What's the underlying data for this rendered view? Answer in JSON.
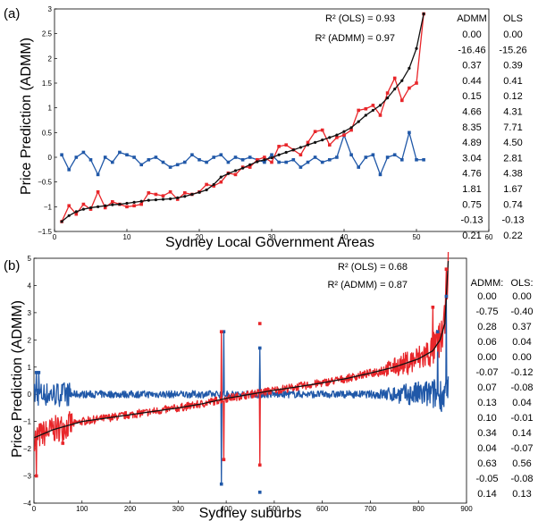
{
  "colors": {
    "ols": "#e8262a",
    "admm": "#2058a8",
    "actual": "#111111"
  },
  "chart_data": [
    {
      "type": "line",
      "panel_label": "(a)",
      "xlabel": "Sydney Local Government Areas",
      "ylabel": "Price Prediction (ADMM)",
      "xlim": [
        0,
        60
      ],
      "ylim": [
        -1.5,
        3
      ],
      "x_ticks": [
        0,
        10,
        20,
        30,
        40,
        50,
        60
      ],
      "y_ticks": [
        -1.5,
        -1,
        -0.5,
        0,
        0.5,
        1,
        1.5,
        2,
        2.5,
        3
      ],
      "x_tick_labels": [
        "0",
        "10",
        "20",
        "30",
        "40",
        "50",
        "60"
      ],
      "y_tick_labels": [
        "−1.5",
        "−1",
        "−0.5",
        "0",
        "0.5",
        "1",
        "1.5",
        "2",
        "2.5",
        "3"
      ],
      "annotations": [
        "R² (OLS) = 0.93",
        "R² (ADMM) = 0.97"
      ],
      "series": [
        {
          "color": "#111111",
          "x": [
            1,
            2,
            3,
            4,
            5,
            6,
            7,
            8,
            9,
            10,
            11,
            12,
            13,
            14,
            15,
            16,
            17,
            18,
            19,
            20,
            21,
            22,
            23,
            24,
            25,
            26,
            27,
            28,
            29,
            30,
            31,
            32,
            33,
            34,
            35,
            36,
            37,
            38,
            39,
            40,
            41,
            42,
            43,
            44,
            45,
            46,
            47,
            48,
            49,
            50,
            51
          ],
          "values": [
            -1.3,
            -1.18,
            -1.1,
            -1.05,
            -1.02,
            -1.0,
            -0.98,
            -0.96,
            -0.95,
            -0.93,
            -0.91,
            -0.89,
            -0.87,
            -0.86,
            -0.85,
            -0.84,
            -0.82,
            -0.79,
            -0.75,
            -0.71,
            -0.66,
            -0.55,
            -0.4,
            -0.33,
            -0.27,
            -0.22,
            -0.15,
            -0.09,
            -0.05,
            -0.01,
            0.05,
            0.1,
            0.15,
            0.2,
            0.25,
            0.3,
            0.35,
            0.4,
            0.45,
            0.52,
            0.6,
            0.72,
            0.85,
            0.95,
            1.05,
            1.2,
            1.38,
            1.55,
            1.8,
            2.2,
            2.9
          ]
        },
        {
          "color": "#e8262a",
          "x": [
            1,
            2,
            3,
            4,
            5,
            6,
            7,
            8,
            9,
            10,
            11,
            12,
            13,
            14,
            15,
            16,
            17,
            18,
            19,
            20,
            21,
            22,
            23,
            24,
            25,
            26,
            27,
            28,
            29,
            30,
            31,
            32,
            33,
            34,
            35,
            36,
            37,
            38,
            39,
            40,
            41,
            42,
            43,
            44,
            45,
            46,
            47,
            48,
            49,
            50,
            51
          ],
          "values": [
            -1.3,
            -0.98,
            -1.15,
            -0.95,
            -1.05,
            -0.7,
            -1.02,
            -0.9,
            -0.95,
            -1.0,
            -0.98,
            -0.95,
            -0.72,
            -0.75,
            -0.78,
            -0.7,
            -0.85,
            -0.72,
            -0.75,
            -0.7,
            -0.55,
            -0.58,
            -0.5,
            -0.32,
            -0.35,
            -0.2,
            -0.2,
            -0.05,
            0.0,
            -0.1,
            0.22,
            0.25,
            0.15,
            0.05,
            0.3,
            0.52,
            0.55,
            0.25,
            0.4,
            0.45,
            0.55,
            0.95,
            0.98,
            1.05,
            0.85,
            1.3,
            1.6,
            1.15,
            1.4,
            1.5,
            2.9
          ]
        },
        {
          "color": "#2058a8",
          "x": [
            1,
            2,
            3,
            4,
            5,
            6,
            7,
            8,
            9,
            10,
            11,
            12,
            13,
            14,
            15,
            16,
            17,
            18,
            19,
            20,
            21,
            22,
            23,
            24,
            25,
            26,
            27,
            28,
            29,
            30,
            31,
            32,
            33,
            34,
            35,
            36,
            37,
            38,
            39,
            40,
            41,
            42,
            43,
            44,
            45,
            46,
            47,
            48,
            49,
            50,
            51
          ],
          "values": [
            0.05,
            -0.25,
            0.0,
            0.1,
            -0.05,
            -0.35,
            0.0,
            -0.1,
            0.1,
            0.05,
            0.0,
            -0.15,
            -0.05,
            0.0,
            -0.1,
            -0.2,
            -0.15,
            -0.1,
            0.05,
            -0.05,
            -0.1,
            0.0,
            0.05,
            -0.1,
            0.0,
            -0.05,
            0.0,
            -0.05,
            -0.1,
            0.05,
            -0.1,
            -0.1,
            -0.05,
            -0.2,
            -0.1,
            0.0,
            -0.1,
            -0.05,
            0.0,
            0.45,
            0.05,
            -0.2,
            0.0,
            0.05,
            -0.35,
            0.0,
            0.05,
            -0.05,
            0.5,
            -0.05,
            -0.05
          ]
        }
      ],
      "table": {
        "headers": [
          "ADMM",
          "OLS"
        ],
        "rows": [
          [
            "0.00",
            "0.00"
          ],
          [
            "-16.46",
            "-15.26"
          ],
          [
            "0.37",
            "0.39"
          ],
          [
            "0.44",
            "0.41"
          ],
          [
            "0.15",
            "0.12"
          ],
          [
            "4.66",
            "4.31"
          ],
          [
            "8.35",
            "7.71"
          ],
          [
            "4.89",
            "4.50"
          ],
          [
            "3.04",
            "2.81"
          ],
          [
            "4.76",
            "4.38"
          ],
          [
            "1.81",
            "1.67"
          ],
          [
            "0.75",
            "0.74"
          ],
          [
            "-0.13",
            "-0.13"
          ],
          [
            "0.21",
            "0.22"
          ]
        ]
      }
    },
    {
      "type": "line",
      "panel_label": "(b)",
      "xlabel": "Sydney suburbs",
      "ylabel": "Price Prediction (ADMM)",
      "xlim": [
        0,
        900
      ],
      "ylim": [
        -4,
        5
      ],
      "x_ticks": [
        0,
        100,
        200,
        300,
        400,
        500,
        600,
        700,
        800,
        900
      ],
      "y_ticks": [
        -4,
        -3,
        -2,
        -1,
        0,
        1,
        2,
        3,
        4,
        5
      ],
      "x_tick_labels": [
        "0",
        "100",
        "200",
        "300",
        "400",
        "500",
        "600",
        "700",
        "800",
        "900"
      ],
      "y_tick_labels": [
        "−4",
        "−3",
        "−2",
        "−1",
        "0",
        "1",
        "2",
        "3",
        "4",
        "5"
      ],
      "annotations": [
        "R² (OLS) = 0.68",
        "R² (ADMM) = 0.87"
      ],
      "n_points": 862,
      "actual_profile": [
        [
          0,
          -1.6
        ],
        [
          40,
          -1.3
        ],
        [
          100,
          -1.0
        ],
        [
          200,
          -0.75
        ],
        [
          300,
          -0.5
        ],
        [
          350,
          -0.35
        ],
        [
          400,
          -0.15
        ],
        [
          450,
          0.0
        ],
        [
          500,
          0.15
        ],
        [
          550,
          0.28
        ],
        [
          600,
          0.42
        ],
        [
          650,
          0.58
        ],
        [
          700,
          0.78
        ],
        [
          750,
          1.0
        ],
        [
          800,
          1.3
        ],
        [
          830,
          1.6
        ],
        [
          845,
          2.0
        ],
        [
          855,
          2.6
        ],
        [
          862,
          4.9
        ]
      ],
      "ols_spikes": [
        [
          390,
          2.3
        ],
        [
          470,
          2.6
        ],
        [
          395,
          -2.4
        ],
        [
          470,
          -2.6
        ],
        [
          5,
          -3.0
        ],
        [
          60,
          -1.8
        ],
        [
          830,
          3.2
        ],
        [
          858,
          4.6
        ]
      ],
      "admm_spikes": [
        [
          390,
          -3.3
        ],
        [
          470,
          -3.6
        ],
        [
          395,
          2.3
        ],
        [
          470,
          1.7
        ],
        [
          5,
          0.8
        ],
        [
          10,
          0.8
        ],
        [
          840,
          2.3
        ],
        [
          858,
          3.6
        ]
      ],
      "table": {
        "headers": [
          "ADMM:",
          "OLS:"
        ],
        "rows": [
          [
            "0.00",
            "0.00"
          ],
          [
            "-0.75",
            "-0.40"
          ],
          [
            "0.28",
            "0.37"
          ],
          [
            "0.06",
            "0.04"
          ],
          [
            "0.00",
            "0.00"
          ],
          [
            "-0.07",
            "-0.12"
          ],
          [
            "0.07",
            "-0.08"
          ],
          [
            "0.13",
            "0.04"
          ],
          [
            "0.10",
            "-0.01"
          ],
          [
            "0.34",
            "0.14"
          ],
          [
            "0.04",
            "-0.07"
          ],
          [
            "0.63",
            "0.56"
          ],
          [
            "-0.05",
            "-0.08"
          ],
          [
            "0.14",
            "0.13"
          ]
        ]
      }
    }
  ]
}
